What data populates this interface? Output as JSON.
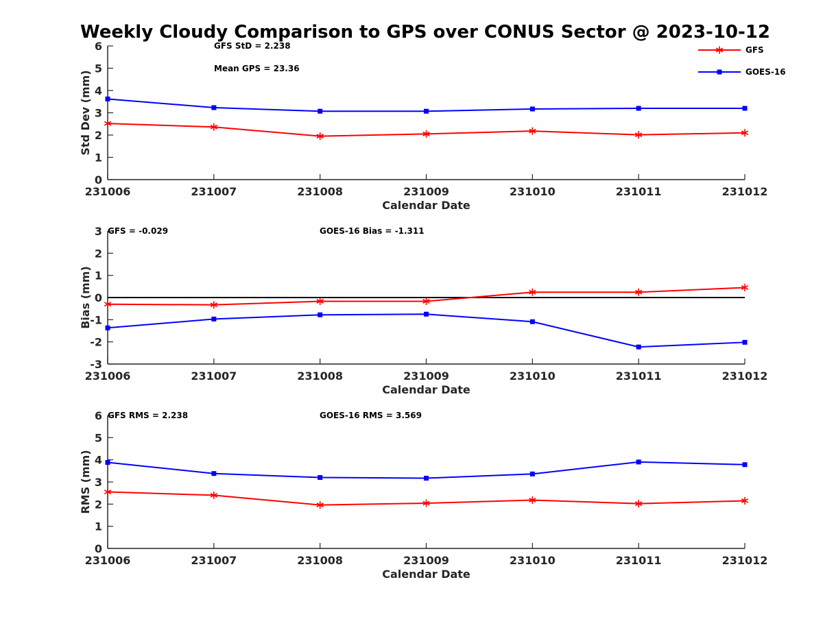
{
  "chart_data": {
    "title": "Weekly Cloudy Comparison to GPS over CONUS Sector @ 2023-10-12",
    "legend": {
      "placement": "top-right",
      "entries": [
        {
          "name": "GFS",
          "color": "#ff0000",
          "marker": "asterisk"
        },
        {
          "name": "GOES-16",
          "color": "#0000ff",
          "marker": "square"
        }
      ]
    },
    "panels": [
      {
        "type": "line",
        "ylabel": "Std Dev (mm)",
        "xlabel": "Calendar Date",
        "x": [
          "231006",
          "231007",
          "231008",
          "231009",
          "231010",
          "231011",
          "231012"
        ],
        "ylim": [
          0,
          6
        ],
        "yticks": [
          "0",
          "1",
          "2",
          "3",
          "4",
          "5",
          "6"
        ],
        "reference_line": null,
        "annotations": [
          "GFS StD = 2.238",
          "Mean GPS = 23.36"
        ],
        "series": [
          {
            "name": "GFS",
            "color": "#ff0000",
            "marker": "asterisk",
            "values": [
              2.52,
              2.36,
              1.95,
              2.05,
              2.18,
              2.01,
              2.1
            ]
          },
          {
            "name": "GOES-16",
            "color": "#0000ff",
            "marker": "square",
            "values": [
              3.62,
              3.23,
              3.07,
              3.07,
              3.17,
              3.2,
              3.2
            ]
          }
        ]
      },
      {
        "type": "line",
        "ylabel": "Bias (mm)",
        "xlabel": "Calendar Date",
        "x": [
          "231006",
          "231007",
          "231008",
          "231009",
          "231010",
          "231011",
          "231012"
        ],
        "ylim": [
          -3,
          3
        ],
        "yticks": [
          "-3",
          "-2",
          "-1",
          "0",
          "1",
          "2",
          "3"
        ],
        "reference_line": 0,
        "annotations": [
          "GFS = -0.029",
          "GOES-16 Bias  = -1.311"
        ],
        "series": [
          {
            "name": "GFS",
            "color": "#ff0000",
            "marker": "asterisk",
            "values": [
              -0.3,
              -0.33,
              -0.17,
              -0.17,
              0.24,
              0.24,
              0.45
            ]
          },
          {
            "name": "GOES-16",
            "color": "#0000ff",
            "marker": "square",
            "values": [
              -1.37,
              -0.97,
              -0.78,
              -0.75,
              -1.09,
              -2.23,
              -2.02
            ]
          }
        ]
      },
      {
        "type": "line",
        "ylabel": "RMS (mm)",
        "xlabel": "Calendar Date",
        "x": [
          "231006",
          "231007",
          "231008",
          "231009",
          "231010",
          "231011",
          "231012"
        ],
        "ylim": [
          0,
          6
        ],
        "yticks": [
          "0",
          "1",
          "2",
          "3",
          "4",
          "5",
          "6"
        ],
        "reference_line": null,
        "annotations": [
          "GFS RMS = 2.238",
          "GOES-16 RMS = 3.569"
        ],
        "series": [
          {
            "name": "GFS",
            "color": "#ff0000",
            "marker": "asterisk",
            "values": [
              2.55,
              2.4,
              1.96,
              2.04,
              2.18,
              2.02,
              2.15
            ]
          },
          {
            "name": "GOES-16",
            "color": "#0000ff",
            "marker": "square",
            "values": [
              3.88,
              3.38,
              3.2,
              3.17,
              3.36,
              3.9,
              3.78
            ]
          }
        ]
      }
    ]
  }
}
